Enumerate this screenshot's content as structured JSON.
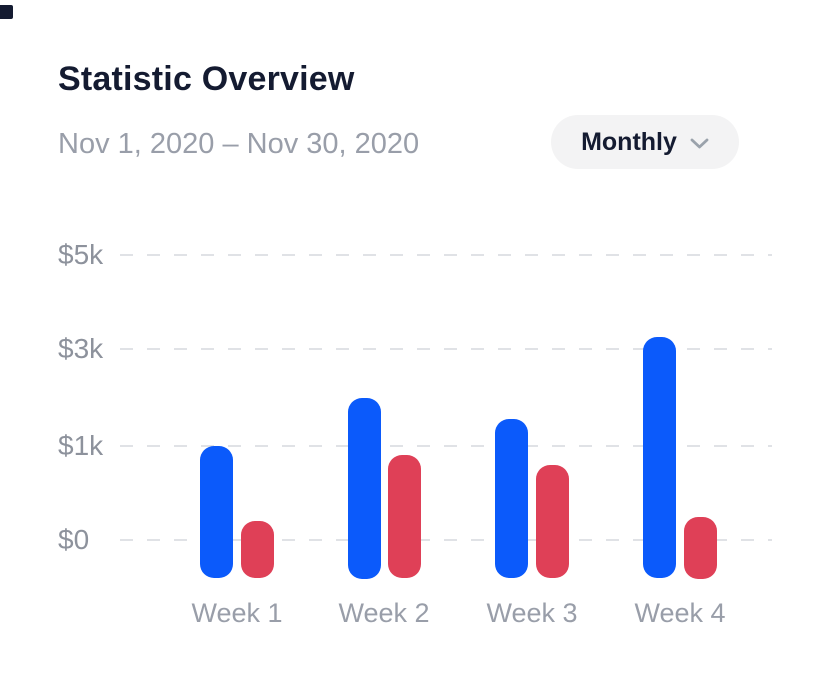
{
  "page": {
    "title": "Statistic Overview",
    "date_range": "Nov 1, 2020 – Nov 30, 2020"
  },
  "period_selector": {
    "selected_label": "Monthly",
    "chevron_icon": "chevron-down"
  },
  "colors": {
    "primary_bar": "#0b5afb",
    "secondary_bar": "#df4057",
    "heading_text": "#141b31",
    "muted_text": "#999ea9",
    "axis_label_text": "#8d929c",
    "gridline": "#e0e2e6",
    "dropdown_background": "#f3f3f4",
    "chevron": "#9aa2ab"
  },
  "chart_data": {
    "type": "bar",
    "title": "Statistic Overview",
    "categories": [
      "Week 1",
      "Week 2",
      "Week 3",
      "Week 4"
    ],
    "series": [
      {
        "name": "primary-blue",
        "color": "#0b5afb",
        "values": [
          1000,
          2000,
          1550,
          3250
        ]
      },
      {
        "name": "secondary-red",
        "color": "#df4057",
        "values": [
          200,
          900,
          800,
          250
        ]
      }
    ],
    "xlabel": "",
    "ylabel": "",
    "y_ticks": [
      {
        "label": "$5k",
        "value": 5000
      },
      {
        "label": "$3k",
        "value": 3000
      },
      {
        "label": "$1k",
        "value": 1000
      },
      {
        "label": "$0",
        "value": 0
      }
    ],
    "axis_scale": "non-linear: ticks 0, 1k, 3k, 5k equally spaced",
    "grid": "horizontal dashed lines",
    "legend": "none",
    "bar_style": "rounded bars extending slightly below the $0 gridline"
  }
}
